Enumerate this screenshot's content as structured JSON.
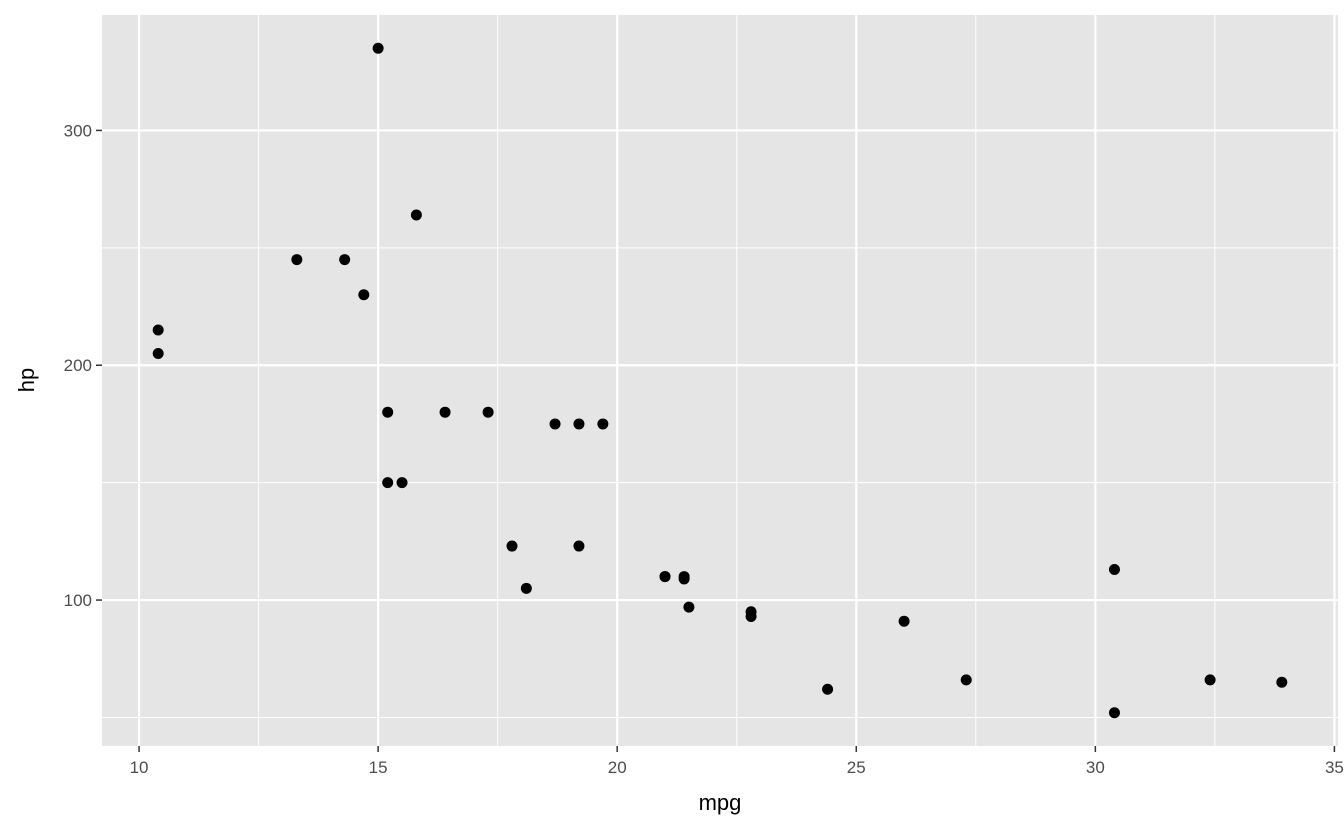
{
  "chart_data": {
    "type": "scatter",
    "title": "",
    "xlabel": "mpg",
    "ylabel": "hp",
    "xlim": [
      9.225,
      35.075
    ],
    "ylim": [
      37.85,
      349.15
    ],
    "xticks": [
      10,
      15,
      20,
      25,
      30,
      35
    ],
    "yticks": [
      100,
      200,
      300
    ],
    "grid": true,
    "colors": {
      "panel": "#e5e5e5",
      "grid": "#ffffff",
      "point": "#000000",
      "tick_text": "#4d4d4d"
    },
    "points": [
      {
        "x": 21.0,
        "y": 110
      },
      {
        "x": 21.0,
        "y": 110
      },
      {
        "x": 22.8,
        "y": 93
      },
      {
        "x": 21.4,
        "y": 110
      },
      {
        "x": 18.7,
        "y": 175
      },
      {
        "x": 18.1,
        "y": 105
      },
      {
        "x": 14.3,
        "y": 245
      },
      {
        "x": 24.4,
        "y": 62
      },
      {
        "x": 22.8,
        "y": 95
      },
      {
        "x": 19.2,
        "y": 123
      },
      {
        "x": 17.8,
        "y": 123
      },
      {
        "x": 16.4,
        "y": 180
      },
      {
        "x": 17.3,
        "y": 180
      },
      {
        "x": 15.2,
        "y": 180
      },
      {
        "x": 10.4,
        "y": 205
      },
      {
        "x": 10.4,
        "y": 215
      },
      {
        "x": 14.7,
        "y": 230
      },
      {
        "x": 32.4,
        "y": 66
      },
      {
        "x": 30.4,
        "y": 52
      },
      {
        "x": 33.9,
        "y": 65
      },
      {
        "x": 21.5,
        "y": 97
      },
      {
        "x": 15.5,
        "y": 150
      },
      {
        "x": 15.2,
        "y": 150
      },
      {
        "x": 13.3,
        "y": 245
      },
      {
        "x": 19.2,
        "y": 175
      },
      {
        "x": 27.3,
        "y": 66
      },
      {
        "x": 26.0,
        "y": 91
      },
      {
        "x": 30.4,
        "y": 113
      },
      {
        "x": 15.8,
        "y": 264
      },
      {
        "x": 19.7,
        "y": 175
      },
      {
        "x": 15.0,
        "y": 335
      },
      {
        "x": 21.4,
        "y": 109
      }
    ]
  }
}
